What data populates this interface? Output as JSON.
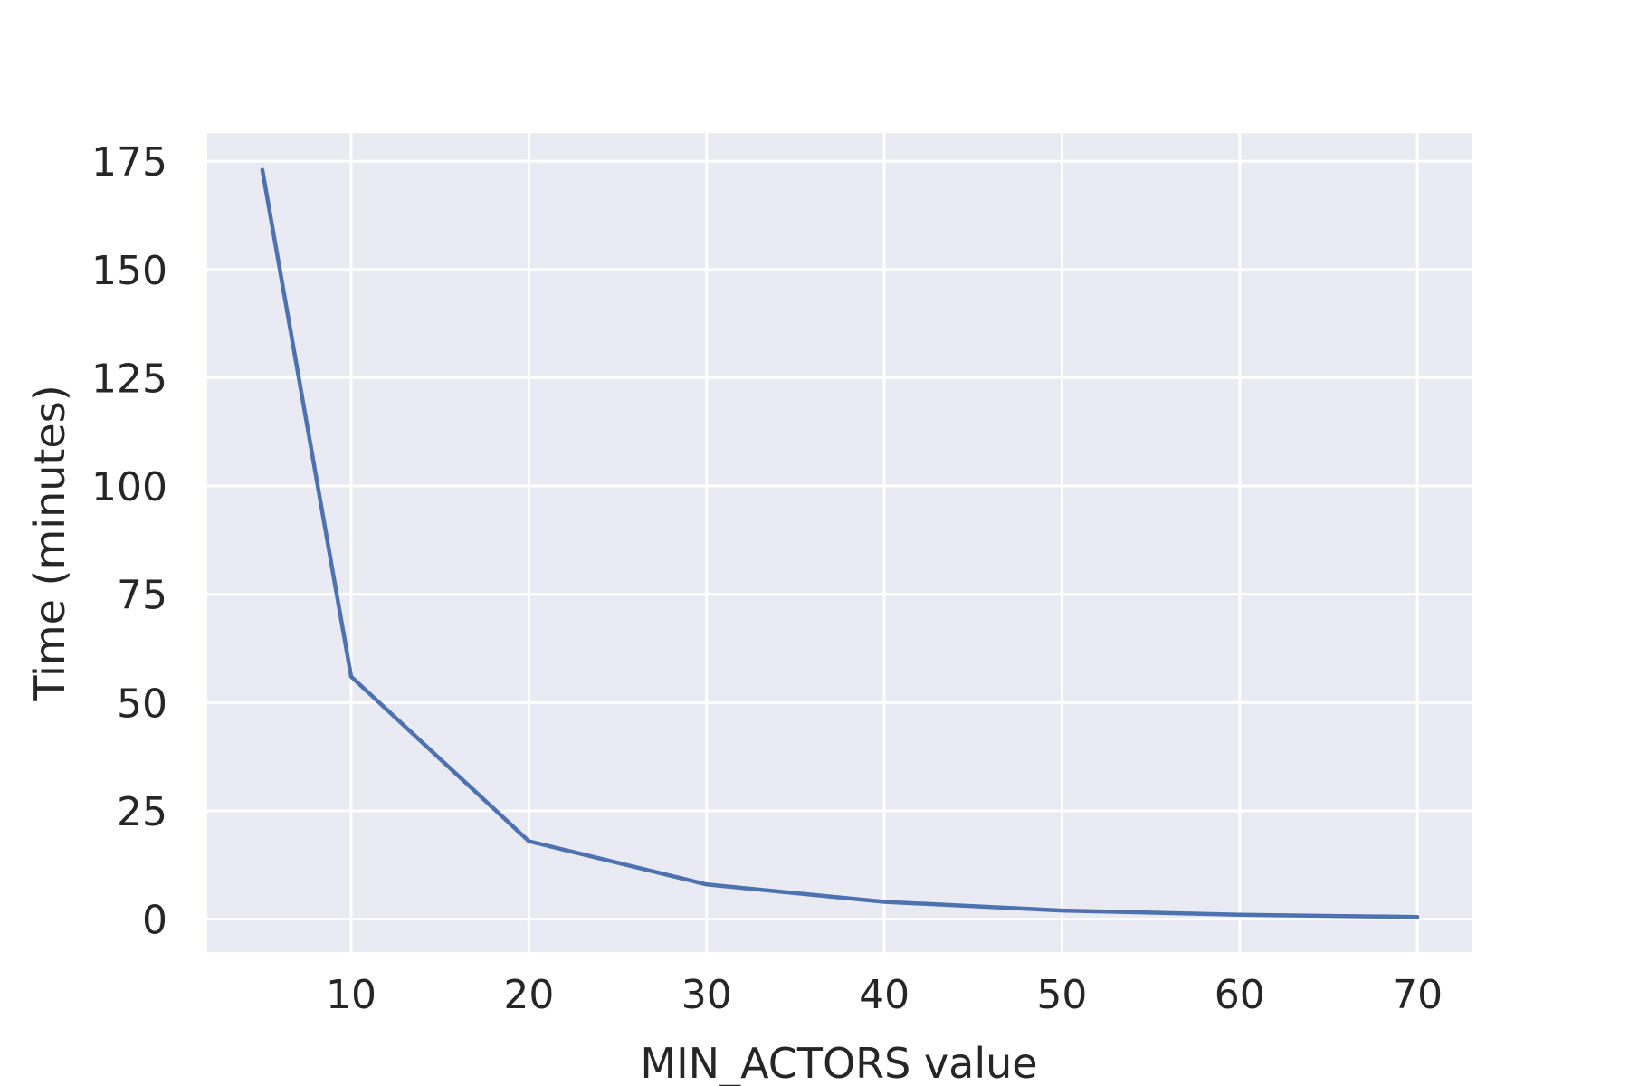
{
  "chart_data": {
    "type": "line",
    "title": "",
    "xlabel": "MIN_ACTORS value",
    "ylabel": "Time (minutes)",
    "xlim": [
      1.9,
      73.1
    ],
    "ylim": [
      -7.6,
      181.5
    ],
    "xticks": [
      10,
      20,
      30,
      40,
      50,
      60,
      70
    ],
    "yticks": [
      0,
      25,
      50,
      75,
      100,
      125,
      150,
      175
    ],
    "grid": true,
    "series": [
      {
        "color": "#4c72b0",
        "x": [
          5,
          10,
          20,
          30,
          40,
          50,
          60,
          70
        ],
        "y": [
          173,
          56,
          18,
          8,
          4,
          2,
          1,
          0.5
        ]
      }
    ],
    "colors": {
      "plot_background": "#eaeaf2",
      "grid": "#ffffff",
      "text": "#262626"
    }
  }
}
